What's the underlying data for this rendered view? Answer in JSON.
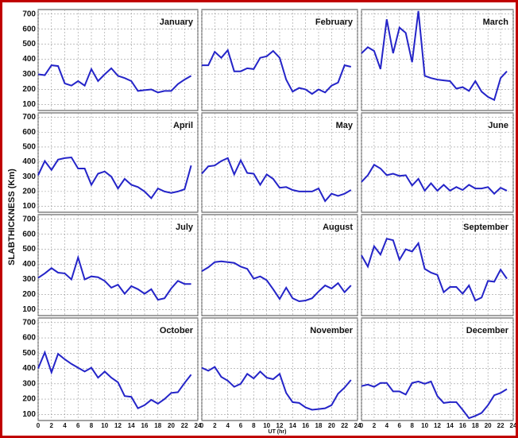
{
  "axis_labels": {
    "y": "SLABTHICKNESS (Km)",
    "x": "UT (hr)"
  },
  "chart_data": [
    {
      "type": "line",
      "title": "January",
      "color": "#2424c8",
      "x": [
        0,
        1,
        2,
        3,
        4,
        5,
        6,
        7,
        8,
        9,
        10,
        11,
        12,
        13,
        14,
        15,
        16,
        17,
        18,
        19,
        20,
        21,
        22,
        23
      ],
      "values": [
        300,
        295,
        360,
        355,
        240,
        225,
        255,
        225,
        335,
        255,
        300,
        340,
        290,
        275,
        255,
        190,
        195,
        200,
        180,
        190,
        190,
        235,
        265,
        290
      ],
      "xlim": [
        0,
        24
      ],
      "xticks": [
        0,
        2,
        4,
        6,
        8,
        10,
        12,
        14,
        16,
        18,
        20,
        22,
        24
      ],
      "ylim": [
        60,
        730
      ],
      "yticks": [
        100,
        200,
        300,
        400,
        500,
        600,
        700
      ],
      "grid": true
    },
    {
      "type": "line",
      "title": "February",
      "color": "#2424c8",
      "x": [
        0,
        1,
        2,
        3,
        4,
        5,
        6,
        7,
        8,
        9,
        10,
        11,
        12,
        13,
        14,
        15,
        16,
        17,
        18,
        19,
        20,
        21,
        22,
        23
      ],
      "values": [
        360,
        360,
        450,
        410,
        460,
        320,
        320,
        340,
        335,
        410,
        420,
        455,
        410,
        265,
        185,
        210,
        200,
        170,
        200,
        180,
        225,
        245,
        360,
        350
      ],
      "xlim": [
        0,
        24
      ],
      "xticks": [
        0,
        2,
        4,
        6,
        8,
        10,
        12,
        14,
        16,
        18,
        20,
        22,
        24
      ],
      "ylim": [
        60,
        730
      ],
      "yticks": [
        100,
        200,
        300,
        400,
        500,
        600,
        700
      ],
      "grid": true
    },
    {
      "type": "line",
      "title": "March",
      "color": "#2424c8",
      "x": [
        0,
        1,
        2,
        3,
        4,
        5,
        6,
        7,
        8,
        9,
        10,
        11,
        12,
        13,
        14,
        15,
        16,
        17,
        18,
        19,
        20,
        21,
        22,
        23
      ],
      "values": [
        440,
        480,
        455,
        335,
        665,
        440,
        610,
        575,
        380,
        720,
        290,
        275,
        265,
        260,
        255,
        205,
        215,
        190,
        255,
        185,
        150,
        130,
        275,
        320
      ],
      "xlim": [
        0,
        24
      ],
      "xticks": [
        0,
        2,
        4,
        6,
        8,
        10,
        12,
        14,
        16,
        18,
        20,
        22,
        24
      ],
      "ylim": [
        60,
        730
      ],
      "yticks": [
        100,
        200,
        300,
        400,
        500,
        600,
        700
      ],
      "grid": true
    },
    {
      "type": "line",
      "title": "April",
      "color": "#2424c8",
      "x": [
        0,
        1,
        2,
        3,
        4,
        5,
        6,
        7,
        8,
        9,
        10,
        11,
        12,
        13,
        14,
        15,
        16,
        17,
        18,
        19,
        20,
        21,
        22,
        23
      ],
      "values": [
        310,
        405,
        345,
        415,
        425,
        430,
        355,
        355,
        245,
        320,
        335,
        300,
        220,
        285,
        245,
        230,
        200,
        155,
        220,
        200,
        190,
        200,
        215,
        375
      ],
      "xlim": [
        0,
        24
      ],
      "xticks": [
        0,
        2,
        4,
        6,
        8,
        10,
        12,
        14,
        16,
        18,
        20,
        22,
        24
      ],
      "ylim": [
        60,
        730
      ],
      "yticks": [
        100,
        200,
        300,
        400,
        500,
        600,
        700
      ],
      "grid": true
    },
    {
      "type": "line",
      "title": "May",
      "color": "#2424c8",
      "x": [
        0,
        1,
        2,
        3,
        4,
        5,
        6,
        7,
        8,
        9,
        10,
        11,
        12,
        13,
        14,
        15,
        16,
        17,
        18,
        19,
        20,
        21,
        22,
        23
      ],
      "values": [
        320,
        370,
        375,
        405,
        425,
        315,
        410,
        325,
        320,
        245,
        315,
        285,
        225,
        230,
        210,
        200,
        200,
        200,
        220,
        135,
        185,
        170,
        185,
        210
      ],
      "xlim": [
        0,
        24
      ],
      "xticks": [
        0,
        2,
        4,
        6,
        8,
        10,
        12,
        14,
        16,
        18,
        20,
        22,
        24
      ],
      "ylim": [
        60,
        730
      ],
      "yticks": [
        100,
        200,
        300,
        400,
        500,
        600,
        700
      ],
      "grid": true
    },
    {
      "type": "line",
      "title": "June",
      "color": "#2424c8",
      "x": [
        0,
        1,
        2,
        3,
        4,
        5,
        6,
        7,
        8,
        9,
        10,
        11,
        12,
        13,
        14,
        15,
        16,
        17,
        18,
        19,
        20,
        21,
        22,
        23
      ],
      "values": [
        265,
        310,
        380,
        355,
        310,
        320,
        305,
        310,
        240,
        285,
        205,
        255,
        205,
        245,
        205,
        230,
        210,
        245,
        220,
        220,
        230,
        185,
        225,
        205
      ],
      "xlim": [
        0,
        24
      ],
      "xticks": [
        0,
        2,
        4,
        6,
        8,
        10,
        12,
        14,
        16,
        18,
        20,
        22,
        24
      ],
      "ylim": [
        60,
        730
      ],
      "yticks": [
        100,
        200,
        300,
        400,
        500,
        600,
        700
      ],
      "grid": true
    },
    {
      "type": "line",
      "title": "July",
      "color": "#2424c8",
      "x": [
        0,
        1,
        2,
        3,
        4,
        5,
        6,
        7,
        8,
        9,
        10,
        11,
        12,
        13,
        14,
        15,
        16,
        17,
        18,
        19,
        20,
        21,
        22,
        23
      ],
      "values": [
        310,
        340,
        375,
        345,
        340,
        300,
        445,
        300,
        320,
        315,
        290,
        245,
        265,
        205,
        255,
        235,
        205,
        235,
        165,
        175,
        240,
        290,
        270,
        270
      ],
      "xlim": [
        0,
        24
      ],
      "xticks": [
        0,
        2,
        4,
        6,
        8,
        10,
        12,
        14,
        16,
        18,
        20,
        22,
        24
      ],
      "ylim": [
        60,
        730
      ],
      "yticks": [
        100,
        200,
        300,
        400,
        500,
        600,
        700
      ],
      "grid": true
    },
    {
      "type": "line",
      "title": "August",
      "color": "#2424c8",
      "x": [
        0,
        1,
        2,
        3,
        4,
        5,
        6,
        7,
        8,
        9,
        10,
        11,
        12,
        13,
        14,
        15,
        16,
        17,
        18,
        19,
        20,
        21,
        22,
        23
      ],
      "values": [
        355,
        380,
        415,
        420,
        415,
        410,
        385,
        370,
        305,
        320,
        295,
        235,
        170,
        245,
        175,
        155,
        160,
        175,
        220,
        260,
        240,
        275,
        215,
        260
      ],
      "xlim": [
        0,
        24
      ],
      "xticks": [
        0,
        2,
        4,
        6,
        8,
        10,
        12,
        14,
        16,
        18,
        20,
        22,
        24
      ],
      "ylim": [
        60,
        730
      ],
      "yticks": [
        100,
        200,
        300,
        400,
        500,
        600,
        700
      ],
      "grid": true
    },
    {
      "type": "line",
      "title": "September",
      "color": "#2424c8",
      "x": [
        0,
        1,
        2,
        3,
        4,
        5,
        6,
        7,
        8,
        9,
        10,
        11,
        12,
        13,
        14,
        15,
        16,
        17,
        18,
        19,
        20,
        21,
        22,
        23
      ],
      "values": [
        460,
        385,
        520,
        465,
        570,
        560,
        430,
        500,
        485,
        540,
        370,
        345,
        330,
        215,
        250,
        250,
        205,
        260,
        160,
        180,
        290,
        285,
        365,
        305
      ],
      "xlim": [
        0,
        24
      ],
      "xticks": [
        0,
        2,
        4,
        6,
        8,
        10,
        12,
        14,
        16,
        18,
        20,
        22,
        24
      ],
      "ylim": [
        60,
        730
      ],
      "yticks": [
        100,
        200,
        300,
        400,
        500,
        600,
        700
      ],
      "grid": true
    },
    {
      "type": "line",
      "title": "October",
      "color": "#2424c8",
      "x": [
        0,
        1,
        2,
        3,
        4,
        5,
        6,
        7,
        8,
        9,
        10,
        11,
        12,
        13,
        14,
        15,
        16,
        17,
        18,
        19,
        20,
        21,
        22,
        23
      ],
      "values": [
        400,
        505,
        375,
        495,
        460,
        430,
        405,
        380,
        405,
        340,
        380,
        340,
        310,
        220,
        215,
        140,
        160,
        195,
        170,
        200,
        240,
        245,
        305,
        360
      ],
      "xlim": [
        0,
        24
      ],
      "xticks": [
        0,
        2,
        4,
        6,
        8,
        10,
        12,
        14,
        16,
        18,
        20,
        22,
        24
      ],
      "ylim": [
        60,
        730
      ],
      "yticks": [
        100,
        200,
        300,
        400,
        500,
        600,
        700
      ],
      "grid": true
    },
    {
      "type": "line",
      "title": "November",
      "color": "#2424c8",
      "x": [
        0,
        1,
        2,
        3,
        4,
        5,
        6,
        7,
        8,
        9,
        10,
        11,
        12,
        13,
        14,
        15,
        16,
        17,
        18,
        19,
        20,
        21,
        22,
        23
      ],
      "values": [
        405,
        385,
        410,
        345,
        320,
        280,
        300,
        365,
        335,
        380,
        340,
        330,
        365,
        240,
        180,
        175,
        145,
        130,
        135,
        140,
        160,
        235,
        275,
        325
      ],
      "xlim": [
        0,
        24
      ],
      "xticks": [
        0,
        2,
        4,
        6,
        8,
        10,
        12,
        14,
        16,
        18,
        20,
        22,
        24
      ],
      "ylim": [
        60,
        730
      ],
      "yticks": [
        100,
        200,
        300,
        400,
        500,
        600,
        700
      ],
      "grid": true
    },
    {
      "type": "line",
      "title": "December",
      "color": "#2424c8",
      "x": [
        0,
        1,
        2,
        3,
        4,
        5,
        6,
        7,
        8,
        9,
        10,
        11,
        12,
        13,
        14,
        15,
        16,
        17,
        18,
        19,
        20,
        21,
        22,
        23
      ],
      "values": [
        285,
        295,
        280,
        305,
        305,
        250,
        250,
        230,
        305,
        315,
        300,
        315,
        220,
        175,
        180,
        180,
        130,
        75,
        90,
        110,
        160,
        225,
        240,
        265
      ],
      "xlim": [
        0,
        24
      ],
      "xticks": [
        0,
        2,
        4,
        6,
        8,
        10,
        12,
        14,
        16,
        18,
        20,
        22,
        24
      ],
      "ylim": [
        60,
        730
      ],
      "yticks": [
        100,
        200,
        300,
        400,
        500,
        600,
        700
      ],
      "grid": true
    }
  ]
}
